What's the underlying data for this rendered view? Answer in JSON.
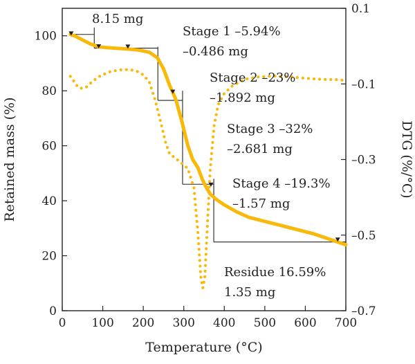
{
  "chart_data": {
    "type": "line",
    "xlabel": "Temperature (°C)",
    "ylabel_left": "Retained mass (%)",
    "ylabel_right": "DTG (%/°C)",
    "xlim": [
      0,
      700
    ],
    "ylim_left": [
      0,
      110
    ],
    "ylim_right": [
      -0.7,
      0.1
    ],
    "x_ticks": [
      0,
      100,
      200,
      300,
      400,
      500,
      600,
      700
    ],
    "y_left_ticks": [
      0,
      20,
      40,
      60,
      80,
      100
    ],
    "y_right_ticks": [
      "0.1",
      "–0.1",
      "–0.3",
      "–0.5",
      "–0.7"
    ],
    "y_right_tick_values": [
      0.1,
      -0.1,
      -0.3,
      -0.5,
      -0.7
    ],
    "colors": {
      "tg": "#F8B90B",
      "dtg": "#F8B90B",
      "axis": "#222222"
    },
    "series": [
      {
        "style": "solid",
        "axis": "left",
        "points": [
          [
            20,
            100.5
          ],
          [
            30,
            100
          ],
          [
            50,
            98.5
          ],
          [
            70,
            97
          ],
          [
            90,
            96
          ],
          [
            110,
            95.7
          ],
          [
            130,
            95.5
          ],
          [
            160,
            95.2
          ],
          [
            190,
            94.8
          ],
          [
            215,
            94
          ],
          [
            235,
            92
          ],
          [
            250,
            88
          ],
          [
            265,
            82
          ],
          [
            280,
            77
          ],
          [
            295,
            69
          ],
          [
            310,
            60
          ],
          [
            322,
            55
          ],
          [
            335,
            52
          ],
          [
            345,
            48
          ],
          [
            355,
            45
          ],
          [
            365,
            42.5
          ],
          [
            380,
            40.5
          ],
          [
            400,
            38.5
          ],
          [
            430,
            36
          ],
          [
            460,
            34
          ],
          [
            500,
            32.5
          ],
          [
            540,
            31
          ],
          [
            580,
            29.5
          ],
          [
            620,
            28
          ],
          [
            660,
            26
          ],
          [
            700,
            24
          ]
        ]
      },
      {
        "style": "dotted",
        "axis": "right",
        "points": [
          [
            20,
            -0.08
          ],
          [
            30,
            -0.095
          ],
          [
            40,
            -0.11
          ],
          [
            50,
            -0.112
          ],
          [
            60,
            -0.108
          ],
          [
            75,
            -0.093
          ],
          [
            95,
            -0.078
          ],
          [
            120,
            -0.067
          ],
          [
            150,
            -0.062
          ],
          [
            170,
            -0.063
          ],
          [
            185,
            -0.067
          ],
          [
            200,
            -0.076
          ],
          [
            215,
            -0.095
          ],
          [
            230,
            -0.145
          ],
          [
            245,
            -0.21
          ],
          [
            255,
            -0.255
          ],
          [
            265,
            -0.285
          ],
          [
            280,
            -0.297
          ],
          [
            295,
            -0.31
          ],
          [
            310,
            -0.324
          ],
          [
            325,
            -0.375
          ],
          [
            335,
            -0.495
          ],
          [
            342,
            -0.61
          ],
          [
            347,
            -0.64
          ],
          [
            352,
            -0.61
          ],
          [
            358,
            -0.48
          ],
          [
            365,
            -0.33
          ],
          [
            375,
            -0.21
          ],
          [
            385,
            -0.155
          ],
          [
            400,
            -0.125
          ],
          [
            420,
            -0.105
          ],
          [
            450,
            -0.088
          ],
          [
            480,
            -0.082
          ],
          [
            520,
            -0.079
          ],
          [
            560,
            -0.081
          ],
          [
            600,
            -0.085
          ],
          [
            640,
            -0.088
          ],
          [
            680,
            -0.089
          ],
          [
            700,
            -0.091
          ]
        ]
      }
    ],
    "markers": [
      [
        22,
        100.6
      ],
      [
        90,
        95.9
      ],
      [
        162,
        95.8
      ],
      [
        273,
        79.4
      ],
      [
        367,
        45.6
      ],
      [
        680,
        25.6
      ]
    ],
    "annotations": [
      {
        "id": "initial",
        "lines": [
          "8.15 mg"
        ]
      },
      {
        "id": "stage1",
        "lines": [
          "Stage 1 –5.94%",
          "–0.486 mg"
        ]
      },
      {
        "id": "stage2",
        "lines": [
          "Stage 2 –23%",
          "–1.892 mg"
        ]
      },
      {
        "id": "stage3",
        "lines": [
          "Stage 3 –32%",
          "–2.681 mg"
        ]
      },
      {
        "id": "stage4",
        "lines": [
          "Stage 4 –19.3%",
          "–1.57 mg"
        ]
      },
      {
        "id": "residue",
        "lines": [
          "Residue 16.59%",
          "1.35 mg"
        ]
      }
    ]
  }
}
